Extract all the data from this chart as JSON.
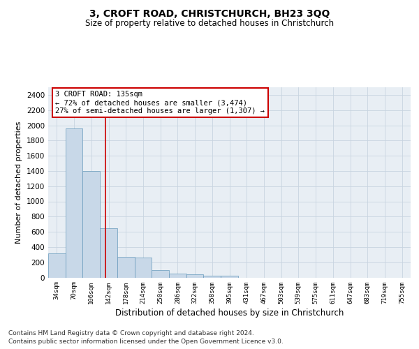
{
  "title": "3, CROFT ROAD, CHRISTCHURCH, BH23 3QQ",
  "subtitle": "Size of property relative to detached houses in Christchurch",
  "xlabel": "Distribution of detached houses by size in Christchurch",
  "ylabel": "Number of detached properties",
  "footer_line1": "Contains HM Land Registry data © Crown copyright and database right 2024.",
  "footer_line2": "Contains public sector information licensed under the Open Government Licence v3.0.",
  "bin_labels": [
    "34sqm",
    "70sqm",
    "106sqm",
    "142sqm",
    "178sqm",
    "214sqm",
    "250sqm",
    "286sqm",
    "322sqm",
    "358sqm",
    "395sqm",
    "431sqm",
    "467sqm",
    "503sqm",
    "539sqm",
    "575sqm",
    "611sqm",
    "647sqm",
    "683sqm",
    "719sqm",
    "755sqm"
  ],
  "bar_values": [
    320,
    1960,
    1400,
    650,
    270,
    260,
    100,
    55,
    40,
    25,
    20,
    0,
    0,
    0,
    0,
    0,
    0,
    0,
    0,
    0,
    0
  ],
  "bar_color": "#c8d8e8",
  "bar_edge_color": "#6699bb",
  "grid_color": "#c8d4e0",
  "bg_color": "#e8eef4",
  "vline_color": "#cc0000",
  "annotation_text": "3 CROFT ROAD: 135sqm\n← 72% of detached houses are smaller (3,474)\n27% of semi-detached houses are larger (1,307) →",
  "annotation_box_color": "#ffffff",
  "annotation_box_edge": "#cc0000",
  "ylim": [
    0,
    2500
  ],
  "yticks": [
    0,
    200,
    400,
    600,
    800,
    1000,
    1200,
    1400,
    1600,
    1800,
    2000,
    2200,
    2400
  ],
  "title_fontsize": 10,
  "subtitle_fontsize": 8.5,
  "ylabel_fontsize": 8,
  "xlabel_fontsize": 8.5,
  "footer_fontsize": 6.5,
  "annot_fontsize": 7.5
}
